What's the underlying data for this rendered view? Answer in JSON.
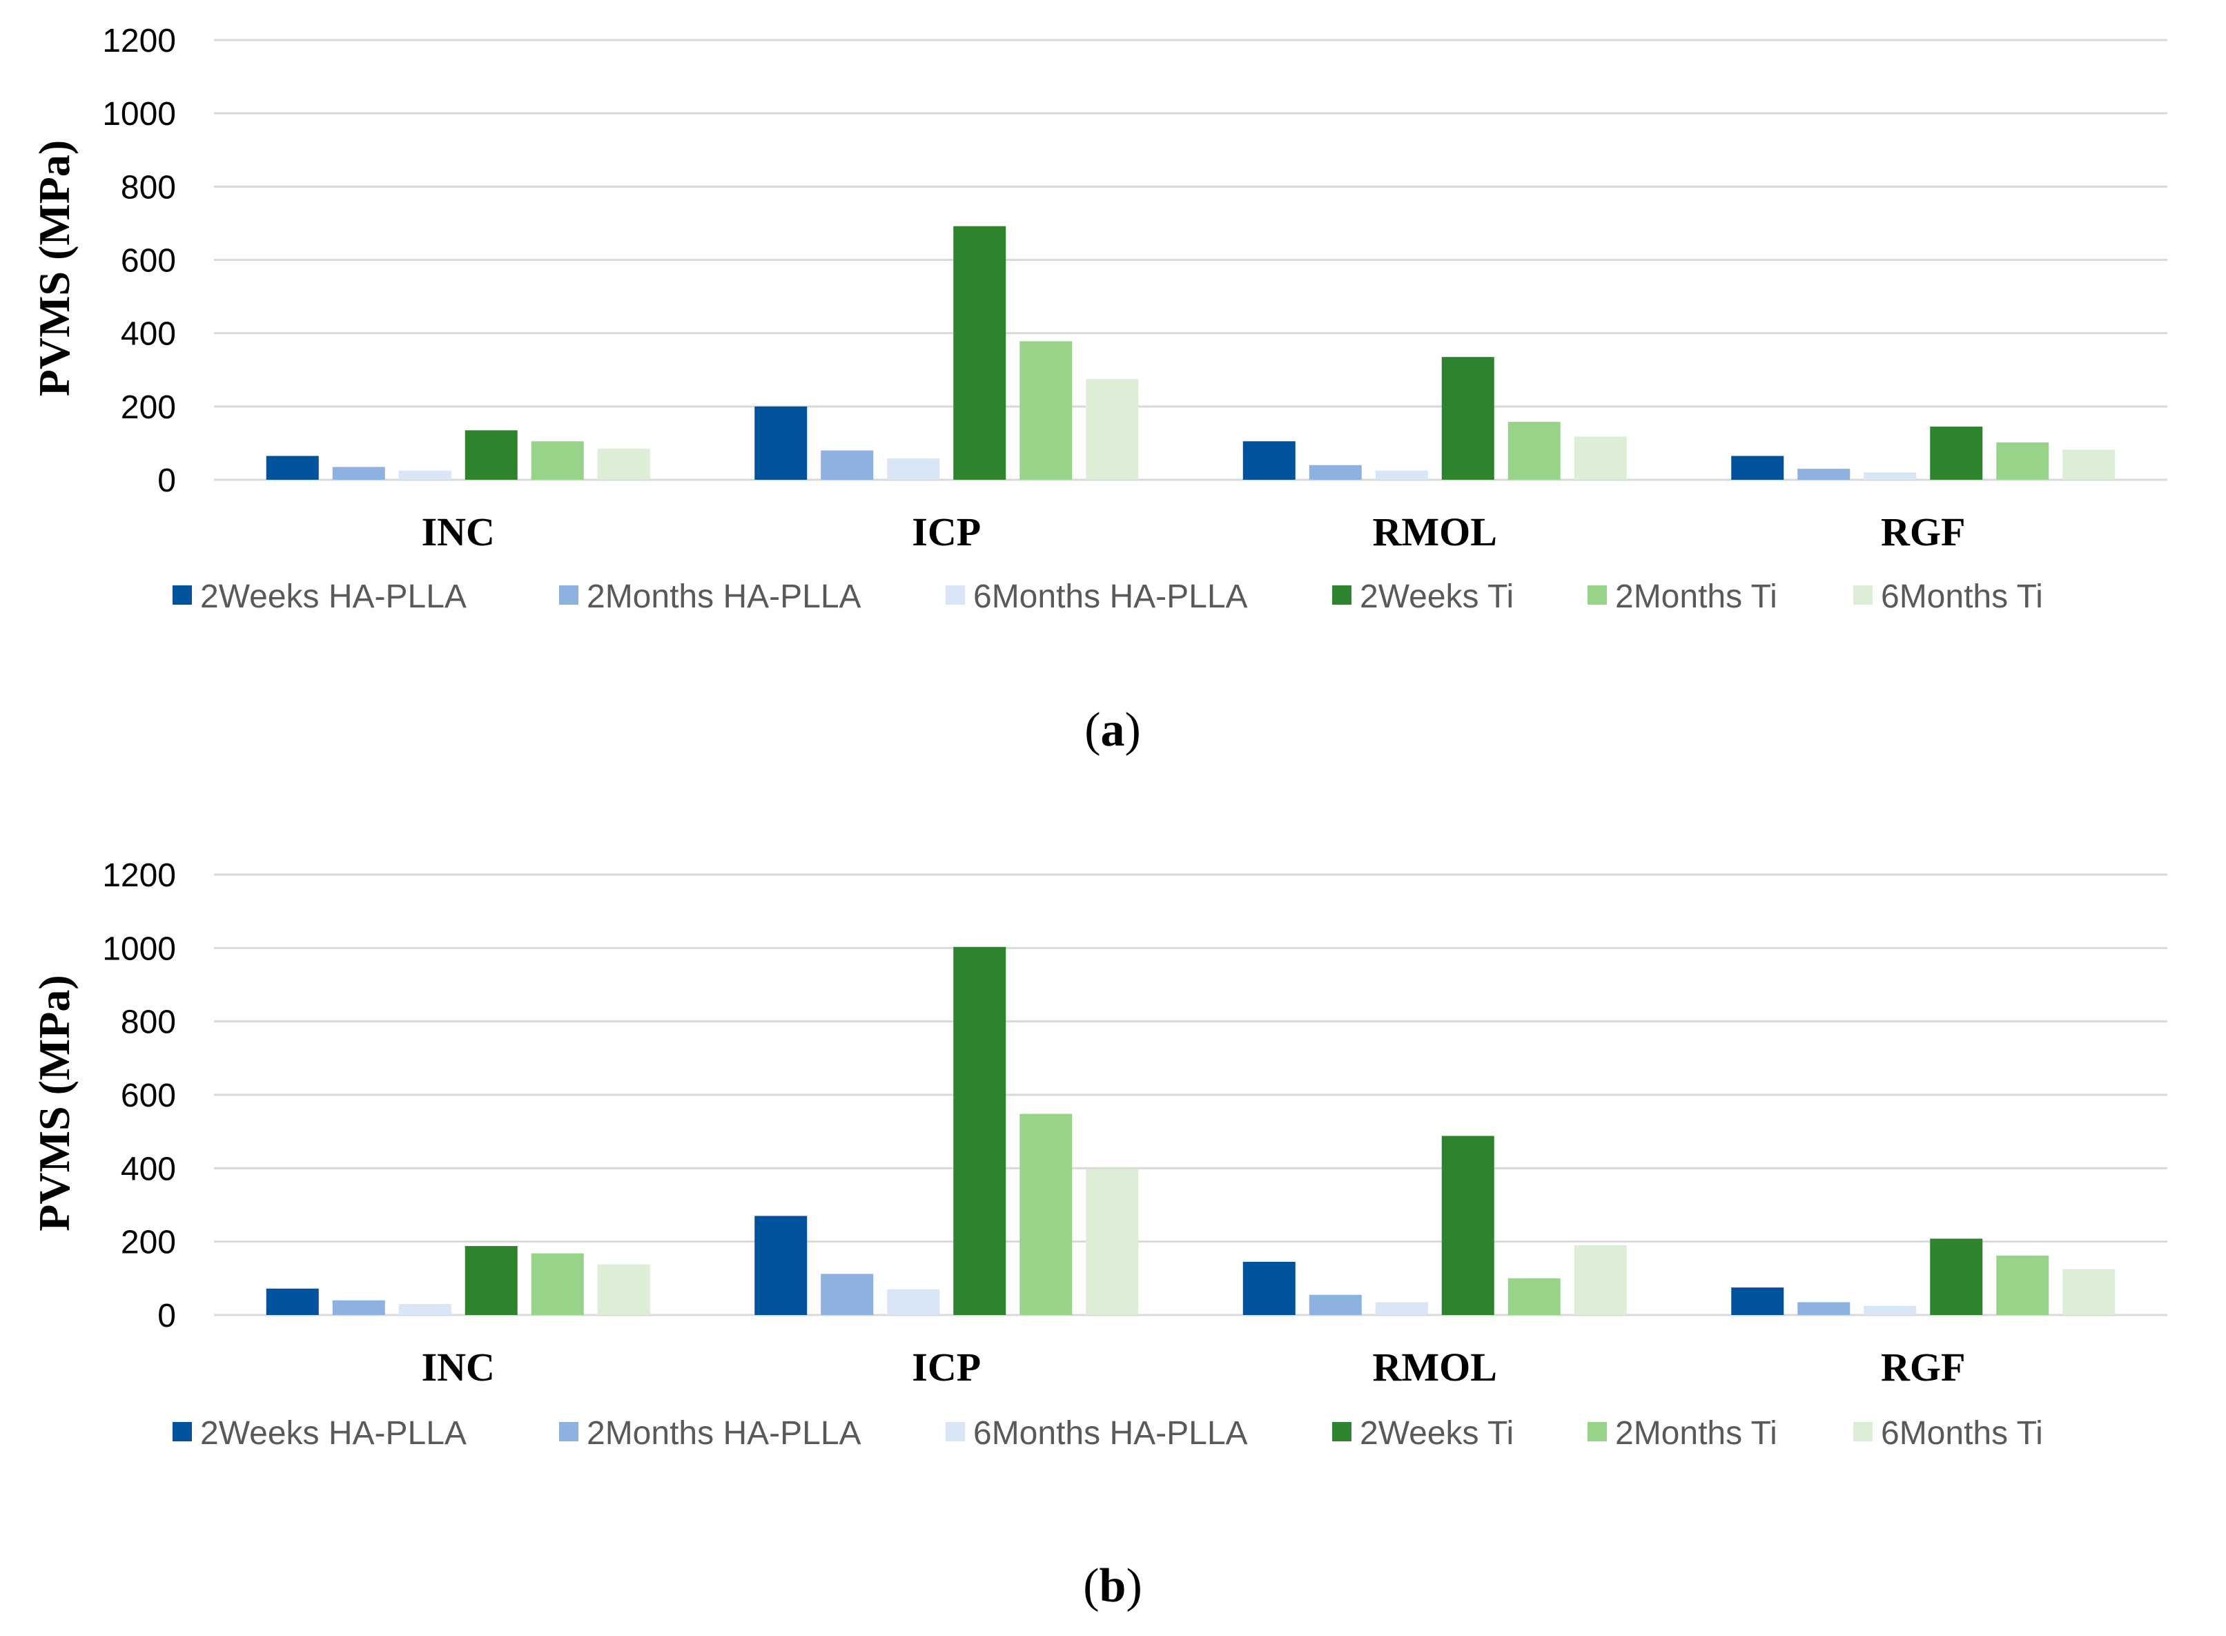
{
  "colors": {
    "2Weeks HA-PLLA": "#00529b",
    "2Months HA-PLLA": "#8eb2e0",
    "6Months HA-PLLA": "#d9e6f5",
    "2Weeks Ti": "#2e832e",
    "2Months Ti": "#98d38a",
    "6Months Ti": "#dcefd6"
  },
  "chart_data": [
    {
      "type": "bar",
      "panel_label": "a",
      "title": "",
      "xlabel": "",
      "ylabel": "PVMS (MPa)",
      "ylim": [
        0,
        1200
      ],
      "yticks": [
        0,
        200,
        400,
        600,
        800,
        1000,
        1200
      ],
      "grid": true,
      "legend": "bottom",
      "categories": [
        "INC",
        "ICP",
        "RMOL",
        "RGF"
      ],
      "series": [
        {
          "name": "2Weeks HA-PLLA",
          "values": [
            65,
            200,
            105,
            65
          ]
        },
        {
          "name": "2Months HA-PLLA",
          "values": [
            35,
            80,
            40,
            30
          ]
        },
        {
          "name": "6Months HA-PLLA",
          "values": [
            25,
            58,
            25,
            20
          ]
        },
        {
          "name": "2Weeks Ti",
          "values": [
            135,
            692,
            335,
            145
          ]
        },
        {
          "name": "2Months Ti",
          "values": [
            105,
            378,
            158,
            102
          ]
        },
        {
          "name": "6Months Ti",
          "values": [
            85,
            275,
            118,
            82
          ]
        }
      ]
    },
    {
      "type": "bar",
      "panel_label": "b",
      "title": "",
      "xlabel": "",
      "ylabel": "PVMS (MPa)",
      "ylim": [
        0,
        1200
      ],
      "yticks": [
        0,
        200,
        400,
        600,
        800,
        1000,
        1200
      ],
      "grid": true,
      "legend": "bottom",
      "categories": [
        "INC",
        "ICP",
        "RMOL",
        "RGF"
      ],
      "series": [
        {
          "name": "2Weeks HA-PLLA",
          "values": [
            72,
            270,
            145,
            75
          ]
        },
        {
          "name": "2Months HA-PLLA",
          "values": [
            40,
            112,
            55,
            35
          ]
        },
        {
          "name": "6Months HA-PLLA",
          "values": [
            30,
            70,
            35,
            25
          ]
        },
        {
          "name": "2Weeks Ti",
          "values": [
            188,
            1003,
            488,
            208
          ]
        },
        {
          "name": "2Months Ti",
          "values": [
            168,
            548,
            100,
            162
          ]
        },
        {
          "name": "6Months Ti",
          "values": [
            138,
            398,
            190,
            125
          ]
        }
      ]
    }
  ]
}
